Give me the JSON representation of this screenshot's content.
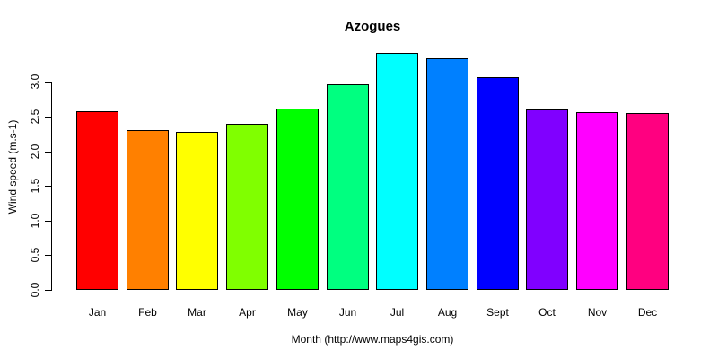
{
  "chart_data": {
    "type": "bar",
    "title": "Azogues",
    "xlabel": "Month (http://www.maps4gis.com)",
    "ylabel": "Wind speed (m.s-1)",
    "categories": [
      "Jan",
      "Feb",
      "Mar",
      "Apr",
      "May",
      "Jun",
      "Jul",
      "Aug",
      "Sept",
      "Oct",
      "Nov",
      "Dec"
    ],
    "values": [
      2.58,
      2.3,
      2.28,
      2.39,
      2.62,
      2.97,
      3.42,
      3.34,
      3.07,
      2.6,
      2.56,
      2.55
    ],
    "bar_colors": [
      "#FF0000",
      "#FF8000",
      "#FFFF00",
      "#80FF00",
      "#00FF00",
      "#00FF80",
      "#00FFFF",
      "#0080FF",
      "#0000FF",
      "#8000FF",
      "#FF00FF",
      "#FF0080"
    ],
    "bar_border_color": "#000000",
    "ytick_labels": [
      "0.0",
      "0.5",
      "1.0",
      "1.5",
      "2.0",
      "2.5",
      "3.0"
    ],
    "ytick_values": [
      0,
      0.5,
      1,
      1.5,
      2,
      2.5,
      3
    ],
    "ylim": [
      0,
      3.45
    ],
    "axis_tick_range": [
      0,
      3.0
    ],
    "grid": false,
    "legend_position": null,
    "background_color": "#FFFFFF",
    "text_color": "#000000"
  }
}
